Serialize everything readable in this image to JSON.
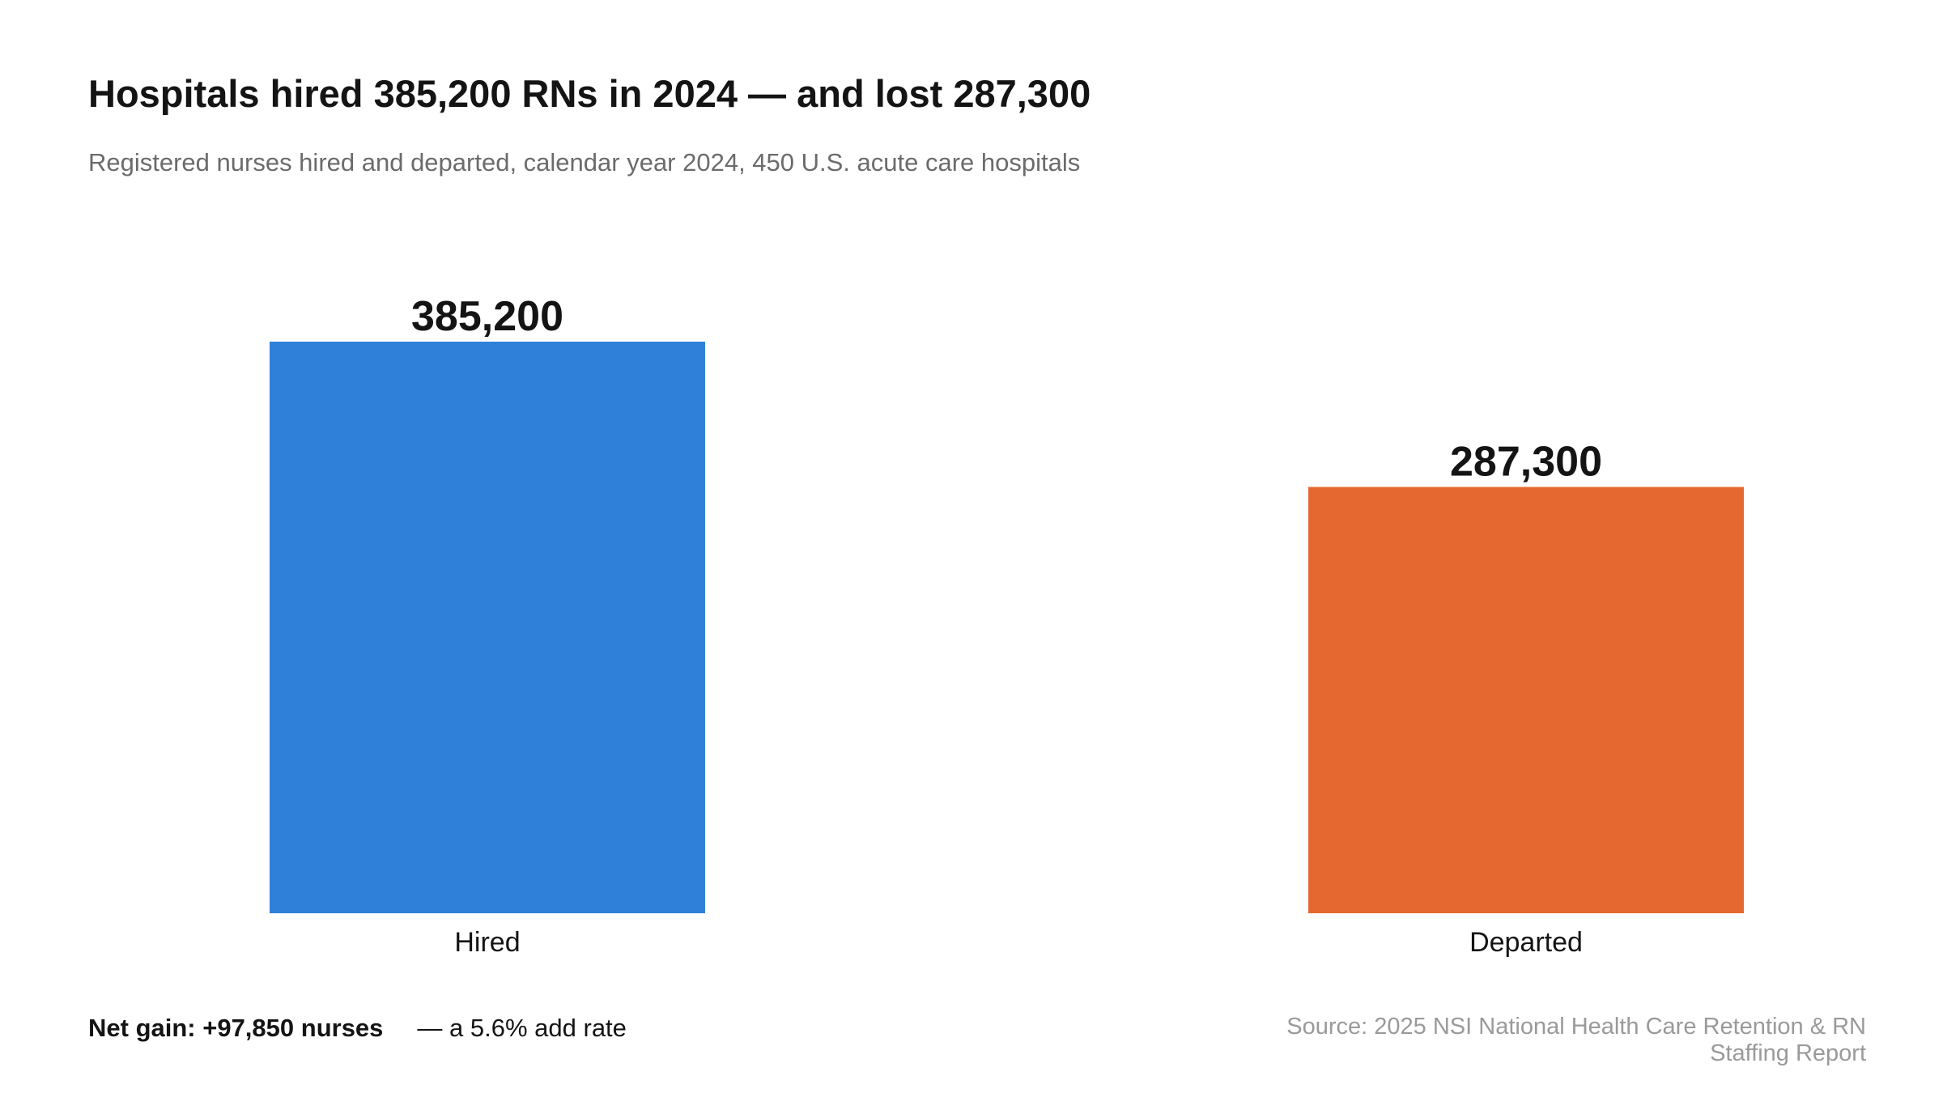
{
  "title": "Hospitals hired 385,200 RNs in 2024 — and lost 287,300",
  "subtitle": "Registered nurses hired and departed, calendar year 2024, 450 U.S. acute care hospitals",
  "footer": {
    "net_gain": "Net gain: +97,850 nurses",
    "add_rate": "— a 5.6% add rate"
  },
  "source": "Source: 2025 NSI National Health Care Retention & RN Staffing Report",
  "chart_data": {
    "type": "bar",
    "categories": [
      "Hired",
      "Departed"
    ],
    "values": [
      385200,
      287300
    ],
    "value_labels": [
      "385,200",
      "287,300"
    ],
    "colors": [
      "#2f80d9",
      "#e56830"
    ],
    "title": "Hospitals hired 385,200 RNs in 2024 — and lost 287,300",
    "subtitle": "Registered nurses hired and departed, calendar year 2024, 450 U.S. acute care hospitals",
    "xlabel": "",
    "ylabel": "",
    "ylim": [
      0,
      385200
    ],
    "grid": false,
    "legend": "none"
  }
}
